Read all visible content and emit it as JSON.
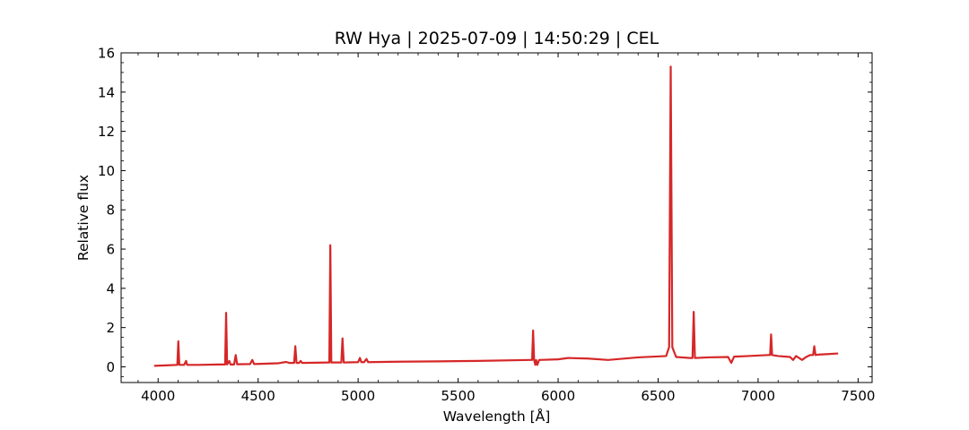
{
  "chart_data": {
    "type": "line",
    "title": "RW Hya | 2025-07-09 | 14:50:29 | CEL",
    "xlabel": "Wavelength [Å]",
    "ylabel": "Relative flux",
    "xlim": [
      3815,
      7570
    ],
    "ylim": [
      -0.8,
      16.0
    ],
    "xticks": [
      4000,
      4500,
      5000,
      5500,
      6000,
      6500,
      7000,
      7500
    ],
    "xtick_labels": [
      "4000",
      "4500",
      "5000",
      "5500",
      "6000",
      "6500",
      "7000",
      "7500"
    ],
    "yticks": [
      0,
      2,
      4,
      6,
      8,
      10,
      12,
      14,
      16
    ],
    "ytick_labels": [
      "0",
      "2",
      "4",
      "6",
      "8",
      "10",
      "12",
      "14",
      "16"
    ],
    "grid": false,
    "legend": "none",
    "series": [
      {
        "color": "#d62728",
        "x": [
          3980,
          4050,
          4096,
          4101,
          4106,
          4130,
          4140,
          4145,
          4200,
          4300,
          4335,
          4340,
          4345,
          4356,
          4362,
          4380,
          4388,
          4395,
          4460,
          4471,
          4480,
          4600,
          4640,
          4655,
          4680,
          4686,
          4692,
          4705,
          4713,
          4720,
          4850,
          4856,
          4861,
          4866,
          4890,
          4916,
          4922,
          4928,
          5000,
          5009,
          5016,
          5030,
          5042,
          5050,
          5200,
          5400,
          5600,
          5860,
          5870,
          5875,
          5880,
          5886,
          5890,
          5896,
          5905,
          6000,
          6050,
          6150,
          6250,
          6400,
          6540,
          6555,
          6563,
          6571,
          6590,
          6660,
          6672,
          6678,
          6684,
          6750,
          6850,
          6866,
          6880,
          6950,
          7050,
          7060,
          7065,
          7070,
          7100,
          7160,
          7175,
          7190,
          7220,
          7240,
          7260,
          7275,
          7281,
          7287,
          7300,
          7350,
          7400
        ],
        "y": [
          0.05,
          0.08,
          0.1,
          1.3,
          0.1,
          0.1,
          0.3,
          0.1,
          0.1,
          0.12,
          0.12,
          2.75,
          0.12,
          0.3,
          0.12,
          0.12,
          0.6,
          0.13,
          0.14,
          0.35,
          0.14,
          0.18,
          0.25,
          0.2,
          0.2,
          1.05,
          0.2,
          0.2,
          0.3,
          0.2,
          0.22,
          0.22,
          6.2,
          0.22,
          0.22,
          0.22,
          1.45,
          0.22,
          0.24,
          0.45,
          0.24,
          0.24,
          0.4,
          0.24,
          0.26,
          0.28,
          0.3,
          0.35,
          0.35,
          1.85,
          0.35,
          0.1,
          0.35,
          0.1,
          0.35,
          0.38,
          0.45,
          0.42,
          0.35,
          0.48,
          0.55,
          1.0,
          15.3,
          1.0,
          0.5,
          0.45,
          0.45,
          2.8,
          0.45,
          0.48,
          0.5,
          0.2,
          0.52,
          0.55,
          0.6,
          0.6,
          1.65,
          0.6,
          0.55,
          0.5,
          0.35,
          0.55,
          0.35,
          0.5,
          0.6,
          0.6,
          1.05,
          0.6,
          0.62,
          0.65,
          0.68
        ]
      }
    ]
  }
}
